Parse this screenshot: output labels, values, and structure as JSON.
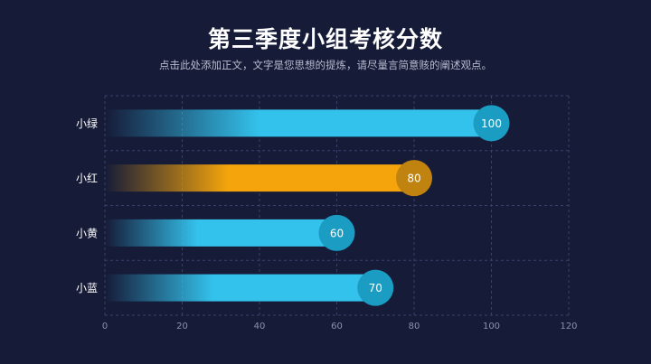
{
  "header": {
    "title": "第三季度小组考核分数",
    "subtitle": "点击此处添加正文，文字是您思想的提炼，请尽量言简意赅的阐述观点。"
  },
  "colors": {
    "background": "#161b38",
    "blue_bar": "#33c2ec",
    "blue_badge": "#1a9cc3",
    "orange_bar": "#f5a50b",
    "orange_badge": "#c08310",
    "grid": "#3a4068",
    "tick": "#8c91ad"
  },
  "chart_data": {
    "type": "bar",
    "orientation": "horizontal",
    "categories": [
      "小绿",
      "小红",
      "小黄",
      "小蓝"
    ],
    "values": [
      100,
      80,
      60,
      70
    ],
    "bar_colors": [
      "blue",
      "orange",
      "blue",
      "blue"
    ],
    "data_labels": [
      "100",
      "80",
      "60",
      "70"
    ],
    "xlim": [
      0,
      120
    ],
    "xticks": [
      "0",
      "20",
      "40",
      "60",
      "80",
      "100",
      "120"
    ],
    "grid": "dashed"
  }
}
